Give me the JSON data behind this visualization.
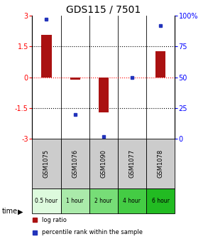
{
  "title": "GDS115 / 7501",
  "samples": [
    "GSM1075",
    "GSM1076",
    "GSM1090",
    "GSM1077",
    "GSM1078"
  ],
  "time_labels": [
    "0.5 hour",
    "1 hour",
    "2 hour",
    "4 hour",
    "6 hour"
  ],
  "log_ratios": [
    2.05,
    -0.12,
    -1.72,
    0.0,
    1.25
  ],
  "percentile_ranks": [
    97,
    20,
    2,
    50,
    92
  ],
  "bar_color": "#aa1111",
  "dot_color": "#2233bb",
  "ylim": [
    -3,
    3
  ],
  "yticks_left": [
    -3,
    -1.5,
    0,
    1.5,
    3
  ],
  "yticks_right_labels": [
    "0",
    "25",
    "50",
    "75",
    "100%"
  ],
  "bar_width": 0.35,
  "title_fontsize": 10,
  "time_colors": [
    "#ddfadd",
    "#aaeaaa",
    "#77dd77",
    "#44cc44",
    "#22bb22"
  ]
}
